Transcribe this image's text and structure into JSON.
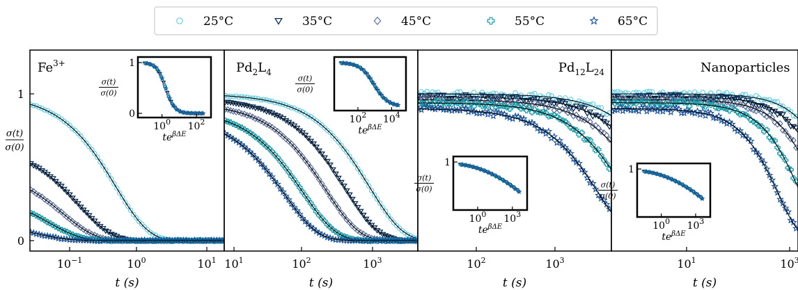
{
  "legend": {
    "entries": [
      {
        "label": "25°C",
        "color": "#6ccde0",
        "marker": "circle"
      },
      {
        "label": "35°C",
        "color": "#0b2d55",
        "marker": "triangle-down"
      },
      {
        "label": "45°C",
        "color": "#5b6f96",
        "marker": "diamond"
      },
      {
        "label": "55°C",
        "color": "#1b9aa8",
        "marker": "plus"
      },
      {
        "label": "65°C",
        "color": "#184f94",
        "marker": "star"
      }
    ]
  },
  "axes": {
    "ylabel_num": "σ(t)",
    "ylabel_den": "σ(0)",
    "xlabel": "t (s)",
    "inset_xlabel": "teβΔE"
  },
  "chart_data": [
    {
      "type": "scatter",
      "title": "Fe3+",
      "xscale": "log",
      "xlim": [
        0.04,
        15
      ],
      "ylim": [
        -0.05,
        1.1
      ],
      "x_ticks": [
        "10−1",
        "100",
        "101"
      ],
      "y_ticks": [
        "0",
        "1"
      ],
      "series": [
        {
          "name": "25°C",
          "y0": 1.0,
          "tau": 0.55
        },
        {
          "name": "35°C",
          "y0": 0.66,
          "tau": 0.18
        },
        {
          "name": "45°C",
          "y0": 0.5,
          "tau": 0.11
        },
        {
          "name": "55°C",
          "y0": 0.34,
          "tau": 0.07
        },
        {
          "name": "65°C",
          "y0": 0.14,
          "tau": 0.045
        }
      ],
      "inset": {
        "x_ticks": [
          "100",
          "102"
        ],
        "y_ticks": [
          "0",
          "1"
        ]
      }
    },
    {
      "type": "scatter",
      "title": "Pd2L4",
      "xscale": "log",
      "xlim": [
        9,
        3000
      ],
      "ylim": [
        -0.05,
        1.1
      ],
      "x_ticks": [
        "101",
        "102",
        "103"
      ],
      "series": [
        {
          "name": "25°C",
          "y0": 1.0,
          "tau": 700
        },
        {
          "name": "35°C",
          "y0": 0.97,
          "tau": 340
        },
        {
          "name": "45°C",
          "y0": 0.94,
          "tau": 190
        },
        {
          "name": "55°C",
          "y0": 0.9,
          "tau": 95
        },
        {
          "name": "65°C",
          "y0": 0.86,
          "tau": 55
        }
      ],
      "inset": {
        "x_ticks": [
          "102",
          "104"
        ]
      }
    },
    {
      "type": "scatter",
      "title": "Pd12L24",
      "xscale": "log",
      "xlim": [
        9,
        4000
      ],
      "ylim": [
        -0.05,
        1.1
      ],
      "x_ticks": [
        "102",
        "103"
      ],
      "series": [
        {
          "name": "25°C",
          "y0": 1.0,
          "tau": 25000
        },
        {
          "name": "35°C",
          "y0": 0.98,
          "tau": 17000
        },
        {
          "name": "45°C",
          "y0": 0.96,
          "tau": 11000
        },
        {
          "name": "55°C",
          "y0": 0.94,
          "tau": 6000
        },
        {
          "name": "65°C",
          "y0": 0.9,
          "tau": 2600
        }
      ],
      "inset": {
        "x_ticks": [
          "100",
          "103"
        ],
        "y_ticks": [
          "1"
        ]
      }
    },
    {
      "type": "scatter",
      "title": "Nanoparticles",
      "xscale": "log",
      "xlim": [
        1,
        4000
      ],
      "ylim": [
        -0.05,
        1.1
      ],
      "x_ticks": [
        "101",
        "103"
      ],
      "series": [
        {
          "name": "25°C",
          "y0": 1.0,
          "tau": 22000
        },
        {
          "name": "35°C",
          "y0": 0.98,
          "tau": 14000
        },
        {
          "name": "45°C",
          "y0": 0.96,
          "tau": 9000
        },
        {
          "name": "55°C",
          "y0": 0.94,
          "tau": 4200
        },
        {
          "name": "65°C",
          "y0": 0.9,
          "tau": 1600
        }
      ],
      "inset": {
        "x_ticks": [
          "100",
          "103"
        ],
        "y_ticks": [
          "1"
        ]
      }
    }
  ]
}
